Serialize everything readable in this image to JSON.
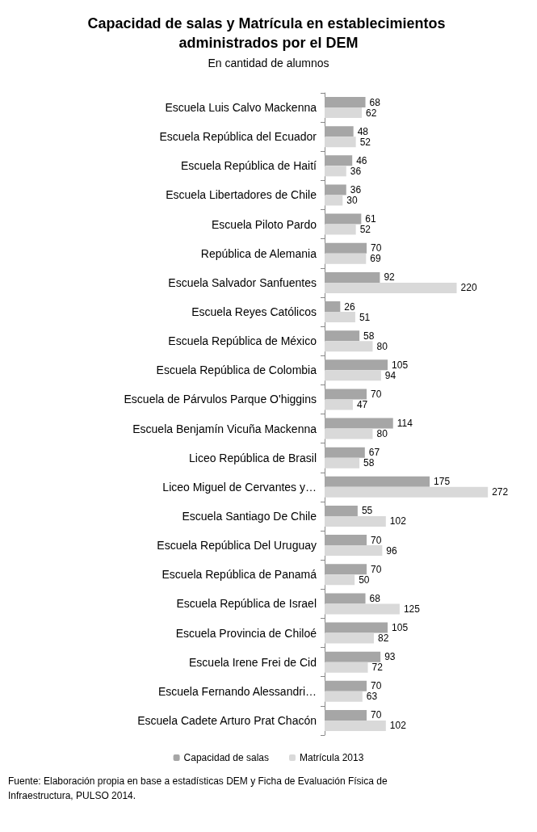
{
  "chart_data": {
    "type": "bar",
    "orientation": "horizontal",
    "title": "Capacidad de salas y Matrícula en establecimientos administrados por el DEM",
    "subtitle": "En cantidad de alumnos",
    "categories": [
      "Escuela Luis Calvo Mackenna",
      "Escuela República del Ecuador",
      "Escuela República de Haití",
      "Escuela Libertadores de Chile",
      "Escuela Piloto Pardo",
      "República de Alemania",
      "Escuela Salvador Sanfuentes",
      "Escuela Reyes Católicos",
      "Escuela República de México",
      "Escuela República de Colombia",
      "Escuela de Párvulos Parque O'higgins",
      "Escuela Benjamín Vicuña Mackenna",
      "Liceo República de Brasil",
      "Liceo Miguel de Cervantes y…",
      "Escuela Santiago De Chile",
      "Escuela República Del Uruguay",
      "Escuela República de Panamá",
      "Escuela República de Israel",
      "Escuela Provincia de Chiloé",
      "Escuela Irene Frei de Cid",
      "Escuela Fernando Alessandri…",
      "Escuela Cadete Arturo Prat Chacón"
    ],
    "series": [
      {
        "name": "Capacidad de salas",
        "color": "#a6a6a6",
        "values": [
          68,
          48,
          46,
          36,
          61,
          70,
          92,
          26,
          58,
          105,
          70,
          114,
          67,
          175,
          55,
          70,
          70,
          68,
          105,
          93,
          70,
          70
        ]
      },
      {
        "name": "Matrícula 2013",
        "color": "#d9d9d9",
        "values": [
          62,
          52,
          36,
          30,
          52,
          69,
          220,
          51,
          80,
          94,
          47,
          80,
          58,
          272,
          102,
          96,
          50,
          125,
          82,
          72,
          63,
          102
        ]
      }
    ],
    "data_labels": true,
    "legend": "bottom",
    "annotations": [
      "Fuente: Elaboración propia en base a estadísticas DEM y Ficha de Evaluación Física de Infraestructura, PULSO 2014."
    ]
  }
}
